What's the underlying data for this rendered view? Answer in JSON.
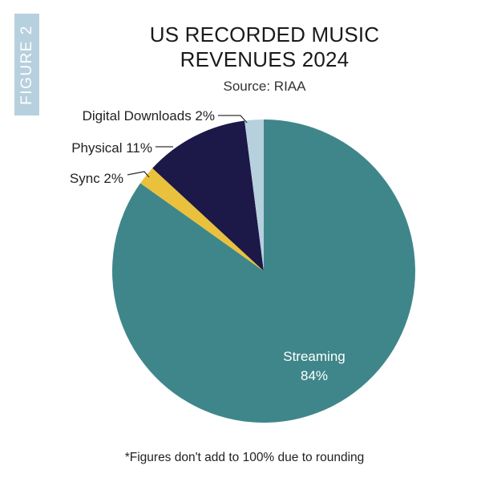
{
  "figure_tag": "FIGURE 2",
  "chart_data": {
    "type": "pie",
    "title_line1": "US RECORDED MUSIC",
    "title_line2": "REVENUES 2024",
    "subtitle": "Source: RIAA",
    "slices": [
      {
        "name": "Streaming",
        "value": 84,
        "label": "84%",
        "color": "#3f868b"
      },
      {
        "name": "Sync",
        "value": 2,
        "label": "Sync 2%",
        "color": "#e9c13c"
      },
      {
        "name": "Physical",
        "value": 11,
        "label": "Physical 11%",
        "color": "#1c1848"
      },
      {
        "name": "Digital Downloads",
        "value": 2,
        "label": "Digital Downloads 2%",
        "color": "#b7d0de"
      }
    ]
  },
  "footnote": "*Figures don't add to 100% due to rounding"
}
